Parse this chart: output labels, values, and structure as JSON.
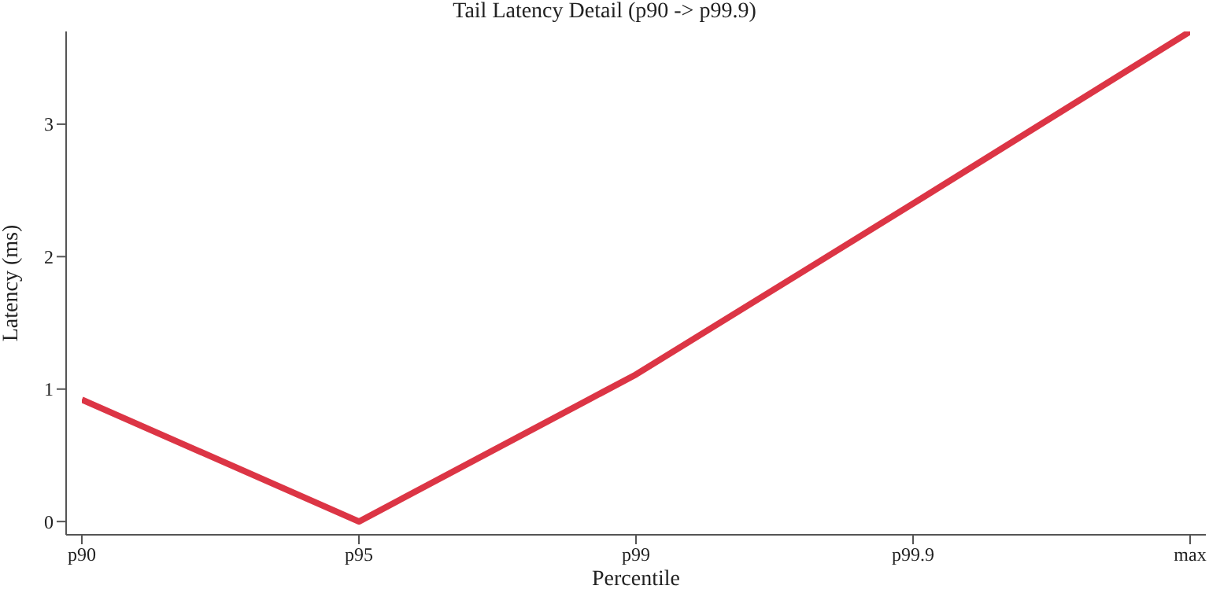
{
  "chart_data": {
    "type": "line",
    "title": "Tail Latency Detail (p90 -> p99.9)",
    "xlabel": "Percentile",
    "ylabel": "Latency (ms)",
    "categories": [
      "p90",
      "p95",
      "p99",
      "p99.9",
      "max"
    ],
    "series": [
      {
        "color": "#dc3545",
        "values": [
          0.92,
          0,
          1.11,
          2.4,
          3.7
        ]
      }
    ],
    "ylim": [
      -0.1,
      3.7
    ],
    "yticks": [
      0,
      1,
      2,
      3
    ],
    "grid": false,
    "legend": false,
    "marker": "none",
    "line_style": "solid"
  }
}
